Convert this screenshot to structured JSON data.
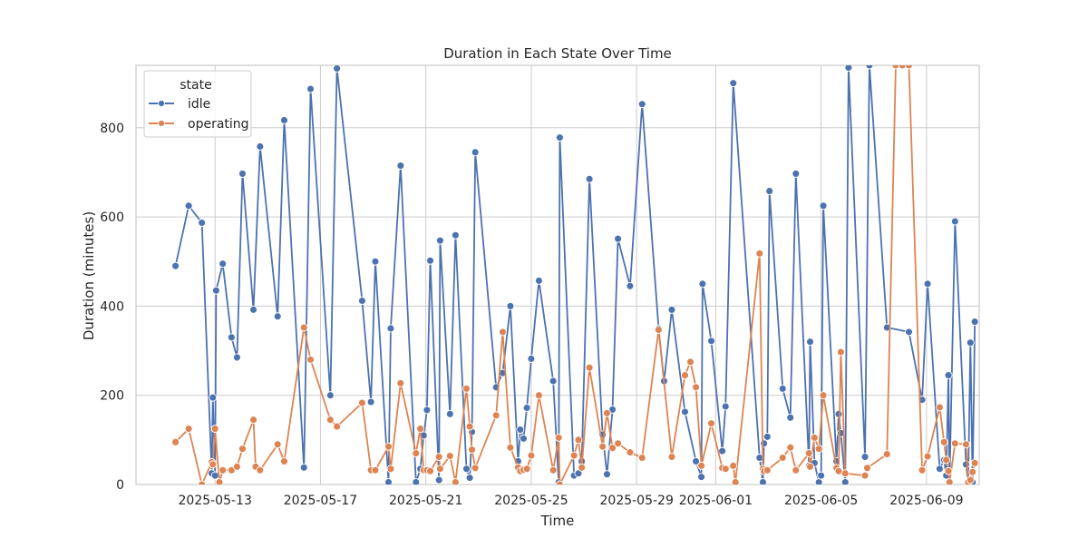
{
  "chart_data": {
    "type": "line",
    "title": "Duration in Each State Over Time",
    "xlabel": "Time",
    "ylabel": "Duration (minutes)",
    "xlim": [
      "2025-05-10T00:00",
      "2025-06-11T00:00"
    ],
    "ylim": [
      0,
      940
    ],
    "xticks": [
      "2025-05-13",
      "2025-05-17",
      "2025-05-21",
      "2025-05-25",
      "2025-05-29",
      "2025-06-01",
      "2025-06-05",
      "2025-06-09"
    ],
    "yticks": [
      0,
      200,
      400,
      600,
      800
    ],
    "grid": true,
    "legend": {
      "title": "state",
      "position": "top-left"
    },
    "colors": {
      "idle": "#4c72b0",
      "operating": "#dd8452",
      "grid": "#cccccc",
      "frame": "#cccccc"
    },
    "series": [
      {
        "name": "idle",
        "points": [
          [
            "2025-05-11T12:00",
            490
          ],
          [
            "2025-05-12T00:00",
            625
          ],
          [
            "2025-05-12T12:00",
            587
          ],
          [
            "2025-05-12T21:00",
            25
          ],
          [
            "2025-05-12T22:00",
            195
          ],
          [
            "2025-05-13T00:00",
            20
          ],
          [
            "2025-05-13T01:00",
            435
          ],
          [
            "2025-05-13T07:00",
            495
          ],
          [
            "2025-05-13T15:00",
            330
          ],
          [
            "2025-05-13T20:00",
            285
          ],
          [
            "2025-05-14T01:00",
            697
          ],
          [
            "2025-05-14T11:00",
            392
          ],
          [
            "2025-05-14T17:00",
            758
          ],
          [
            "2025-05-15T09:00",
            377
          ],
          [
            "2025-05-15T15:00",
            817
          ],
          [
            "2025-05-16T09:00",
            38
          ],
          [
            "2025-05-16T15:00",
            887
          ],
          [
            "2025-05-17T09:00",
            200
          ],
          [
            "2025-05-17T15:00",
            933
          ],
          [
            "2025-05-18T14:00",
            412
          ],
          [
            "2025-05-18T22:00",
            185
          ],
          [
            "2025-05-19T02:00",
            500
          ],
          [
            "2025-05-19T14:00",
            5
          ],
          [
            "2025-05-19T16:00",
            350
          ],
          [
            "2025-05-20T01:00",
            715
          ],
          [
            "2025-05-20T15:00",
            5
          ],
          [
            "2025-05-20T19:00",
            35
          ],
          [
            "2025-05-20T22:00",
            110
          ],
          [
            "2025-05-21T01:00",
            167
          ],
          [
            "2025-05-21T04:00",
            502
          ],
          [
            "2025-05-21T12:00",
            10
          ],
          [
            "2025-05-21T13:00",
            547
          ],
          [
            "2025-05-21T22:00",
            158
          ],
          [
            "2025-05-22T03:00",
            559
          ],
          [
            "2025-05-22T13:00",
            35
          ],
          [
            "2025-05-22T16:00",
            15
          ],
          [
            "2025-05-22T18:00",
            118
          ],
          [
            "2025-05-22T21:00",
            745
          ],
          [
            "2025-05-23T16:00",
            218
          ],
          [
            "2025-05-23T22:00",
            250
          ],
          [
            "2025-05-24T05:00",
            400
          ],
          [
            "2025-05-24T12:00",
            52
          ],
          [
            "2025-05-24T14:00",
            123
          ],
          [
            "2025-05-24T17:00",
            103
          ],
          [
            "2025-05-24T20:00",
            172
          ],
          [
            "2025-05-25T00:00",
            282
          ],
          [
            "2025-05-25T07:00",
            457
          ],
          [
            "2025-05-25T20:00",
            232
          ],
          [
            "2025-05-26T01:00",
            5
          ],
          [
            "2025-05-26T02:00",
            778
          ],
          [
            "2025-05-26T15:00",
            20
          ],
          [
            "2025-05-26T19:00",
            25
          ],
          [
            "2025-05-26T22:00",
            52
          ],
          [
            "2025-05-27T05:00",
            685
          ],
          [
            "2025-05-27T17:00",
            112
          ],
          [
            "2025-05-27T21:00",
            23
          ],
          [
            "2025-05-28T02:00",
            168
          ],
          [
            "2025-05-28T07:00",
            551
          ],
          [
            "2025-05-28T18:00",
            445
          ],
          [
            "2025-05-29T05:00",
            853
          ],
          [
            "2025-05-29T20:00",
            350
          ],
          [
            "2025-05-30T01:00",
            232
          ],
          [
            "2025-05-30T08:00",
            392
          ],
          [
            "2025-05-30T20:00",
            163
          ],
          [
            "2025-05-31T06:00",
            52
          ],
          [
            "2025-05-31T11:00",
            17
          ],
          [
            "2025-05-31T12:00",
            450
          ],
          [
            "2025-05-31T20:00",
            322
          ],
          [
            "2025-06-01T06:00",
            75
          ],
          [
            "2025-06-01T09:00",
            175
          ],
          [
            "2025-06-01T16:00",
            900
          ],
          [
            "2025-06-02T16:00",
            60
          ],
          [
            "2025-06-02T19:00",
            5
          ],
          [
            "2025-06-02T20:00",
            92
          ],
          [
            "2025-06-02T23:00",
            107
          ],
          [
            "2025-06-03T01:00",
            658
          ],
          [
            "2025-06-03T13:00",
            215
          ],
          [
            "2025-06-03T20:00",
            150
          ],
          [
            "2025-06-04T01:00",
            697
          ],
          [
            "2025-06-04T13:00",
            42
          ],
          [
            "2025-06-04T14:00",
            320
          ],
          [
            "2025-06-04T18:00",
            48
          ],
          [
            "2025-06-04T22:00",
            5
          ],
          [
            "2025-06-05T00:00",
            20
          ],
          [
            "2025-06-05T02:00",
            625
          ],
          [
            "2025-06-05T14:00",
            52
          ],
          [
            "2025-06-05T16:00",
            158
          ],
          [
            "2025-06-05T18:00",
            115
          ],
          [
            "2025-06-05T22:00",
            5
          ],
          [
            "2025-06-06T01:00",
            935
          ],
          [
            "2025-06-06T16:00",
            62
          ],
          [
            "2025-06-06T20:00",
            940
          ],
          [
            "2025-06-07T12:00",
            352
          ],
          [
            "2025-06-08T08:00",
            342
          ],
          [
            "2025-06-08T20:00",
            190
          ],
          [
            "2025-06-09T01:00",
            450
          ],
          [
            "2025-06-09T12:00",
            35
          ],
          [
            "2025-06-09T16:00",
            55
          ],
          [
            "2025-06-09T18:00",
            20
          ],
          [
            "2025-06-09T20:00",
            245
          ],
          [
            "2025-06-09T21:00",
            5
          ],
          [
            "2025-06-10T02:00",
            590
          ],
          [
            "2025-06-10T12:00",
            45
          ],
          [
            "2025-06-10T14:00",
            5
          ],
          [
            "2025-06-10T16:00",
            318
          ],
          [
            "2025-06-10T18:00",
            5
          ],
          [
            "2025-06-10T20:00",
            365
          ]
        ]
      },
      {
        "name": "operating",
        "points": [
          [
            "2025-05-11T12:00",
            95
          ],
          [
            "2025-05-12T00:00",
            125
          ],
          [
            "2025-05-12T12:00",
            0
          ],
          [
            "2025-05-12T21:00",
            50
          ],
          [
            "2025-05-12T22:00",
            45
          ],
          [
            "2025-05-13T00:00",
            125
          ],
          [
            "2025-05-13T04:00",
            5
          ],
          [
            "2025-05-13T07:00",
            32
          ],
          [
            "2025-05-13T15:00",
            32
          ],
          [
            "2025-05-13T20:00",
            40
          ],
          [
            "2025-05-14T01:00",
            80
          ],
          [
            "2025-05-14T11:00",
            145
          ],
          [
            "2025-05-14T13:00",
            40
          ],
          [
            "2025-05-14T17:00",
            32
          ],
          [
            "2025-05-15T09:00",
            90
          ],
          [
            "2025-05-15T15:00",
            52
          ],
          [
            "2025-05-16T09:00",
            352
          ],
          [
            "2025-05-16T15:00",
            280
          ],
          [
            "2025-05-17T09:00",
            145
          ],
          [
            "2025-05-17T15:00",
            130
          ],
          [
            "2025-05-18T14:00",
            183
          ],
          [
            "2025-05-18T22:00",
            32
          ],
          [
            "2025-05-19T02:00",
            32
          ],
          [
            "2025-05-19T14:00",
            85
          ],
          [
            "2025-05-19T16:00",
            35
          ],
          [
            "2025-05-20T01:00",
            227
          ],
          [
            "2025-05-20T15:00",
            70
          ],
          [
            "2025-05-20T19:00",
            125
          ],
          [
            "2025-05-20T22:00",
            32
          ],
          [
            "2025-05-21T01:00",
            32
          ],
          [
            "2025-05-21T04:00",
            30
          ],
          [
            "2025-05-21T12:00",
            62
          ],
          [
            "2025-05-21T13:00",
            35
          ],
          [
            "2025-05-21T22:00",
            64
          ],
          [
            "2025-05-22T03:00",
            5
          ],
          [
            "2025-05-22T13:00",
            215
          ],
          [
            "2025-05-22T16:00",
            130
          ],
          [
            "2025-05-22T18:00",
            78
          ],
          [
            "2025-05-22T21:00",
            37
          ],
          [
            "2025-05-23T16:00",
            155
          ],
          [
            "2025-05-23T22:00",
            342
          ],
          [
            "2025-05-24T05:00",
            83
          ],
          [
            "2025-05-24T12:00",
            38
          ],
          [
            "2025-05-24T14:00",
            30
          ],
          [
            "2025-05-24T17:00",
            33
          ],
          [
            "2025-05-24T20:00",
            35
          ],
          [
            "2025-05-25T00:00",
            65
          ],
          [
            "2025-05-25T07:00",
            200
          ],
          [
            "2025-05-25T20:00",
            32
          ],
          [
            "2025-05-26T01:00",
            105
          ],
          [
            "2025-05-26T02:00",
            0
          ],
          [
            "2025-05-26T15:00",
            65
          ],
          [
            "2025-05-26T19:00",
            100
          ],
          [
            "2025-05-26T22:00",
            38
          ],
          [
            "2025-05-27T05:00",
            262
          ],
          [
            "2025-05-27T17:00",
            85
          ],
          [
            "2025-05-27T21:00",
            160
          ],
          [
            "2025-05-28T02:00",
            82
          ],
          [
            "2025-05-28T07:00",
            92
          ],
          [
            "2025-05-28T18:00",
            72
          ],
          [
            "2025-05-29T05:00",
            60
          ],
          [
            "2025-05-29T20:00",
            347
          ],
          [
            "2025-05-30T08:00",
            62
          ],
          [
            "2025-05-30T20:00",
            245
          ],
          [
            "2025-05-31T01:00",
            275
          ],
          [
            "2025-05-31T06:00",
            218
          ],
          [
            "2025-05-31T11:00",
            42
          ],
          [
            "2025-05-31T20:00",
            137
          ],
          [
            "2025-06-01T06:00",
            37
          ],
          [
            "2025-06-01T09:00",
            35
          ],
          [
            "2025-06-01T16:00",
            42
          ],
          [
            "2025-06-01T18:00",
            5
          ],
          [
            "2025-06-02T16:00",
            518
          ],
          [
            "2025-06-02T19:00",
            35
          ],
          [
            "2025-06-02T20:00",
            30
          ],
          [
            "2025-06-02T23:00",
            32
          ],
          [
            "2025-06-03T13:00",
            60
          ],
          [
            "2025-06-03T20:00",
            83
          ],
          [
            "2025-06-04T01:00",
            32
          ],
          [
            "2025-06-04T13:00",
            70
          ],
          [
            "2025-06-04T14:00",
            40
          ],
          [
            "2025-06-04T18:00",
            105
          ],
          [
            "2025-06-04T22:00",
            80
          ],
          [
            "2025-06-05T02:00",
            200
          ],
          [
            "2025-06-05T14:00",
            37
          ],
          [
            "2025-06-05T16:00",
            30
          ],
          [
            "2025-06-05T18:00",
            297
          ],
          [
            "2025-06-05T22:00",
            25
          ],
          [
            "2025-06-06T16:00",
            20
          ],
          [
            "2025-06-06T18:00",
            37
          ],
          [
            "2025-06-07T12:00",
            68
          ],
          [
            "2025-06-07T20:00",
            940
          ],
          [
            "2025-06-08T02:00",
            940
          ],
          [
            "2025-06-08T08:00",
            940
          ],
          [
            "2025-06-08T20:00",
            32
          ],
          [
            "2025-06-09T01:00",
            63
          ],
          [
            "2025-06-09T12:00",
            173
          ],
          [
            "2025-06-09T16:00",
            95
          ],
          [
            "2025-06-09T18:00",
            55
          ],
          [
            "2025-06-09T20:00",
            30
          ],
          [
            "2025-06-09T21:00",
            5
          ],
          [
            "2025-06-10T02:00",
            92
          ],
          [
            "2025-06-10T12:00",
            90
          ],
          [
            "2025-06-10T14:00",
            5
          ],
          [
            "2025-06-10T16:00",
            10
          ],
          [
            "2025-06-10T18:00",
            28
          ],
          [
            "2025-06-10T20:00",
            48
          ]
        ]
      }
    ]
  }
}
